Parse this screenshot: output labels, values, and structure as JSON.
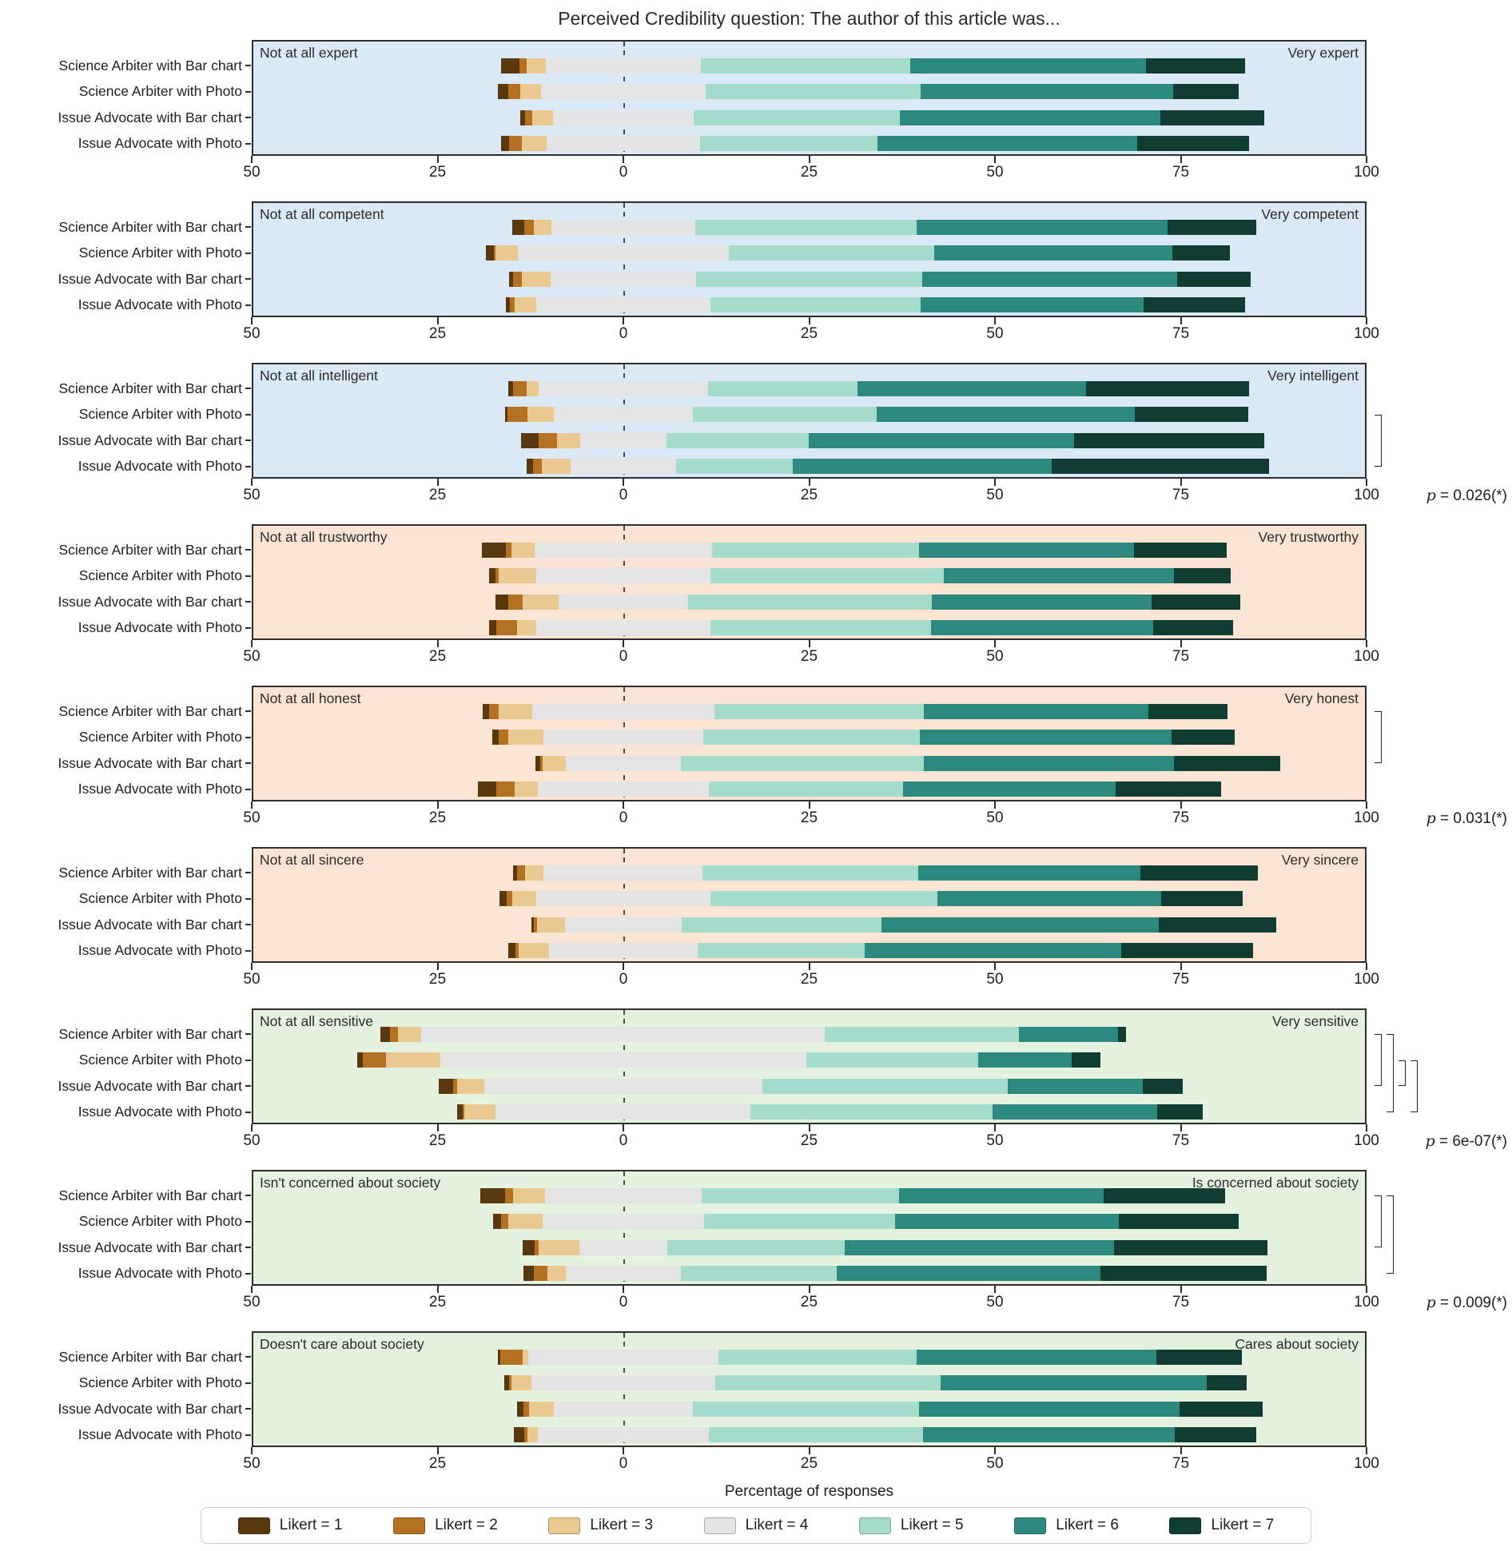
{
  "title": "Perceived Credibility question: The author of this article was...",
  "xlabel": "Percentage of responses",
  "legend": {
    "items": [
      {
        "label": "Likert = 1",
        "color": "#5a380e"
      },
      {
        "label": "Likert = 2",
        "color": "#b47122"
      },
      {
        "label": "Likert = 3",
        "color": "#e9c98f"
      },
      {
        "label": "Likert = 4",
        "color": "#e4e4e4"
      },
      {
        "label": "Likert = 5",
        "color": "#a4dbca"
      },
      {
        "label": "Likert = 6",
        "color": "#2b8a7d"
      },
      {
        "label": "Likert = 7",
        "color": "#103c31"
      }
    ]
  },
  "chart_data": {
    "type": "diverging_stacked_bar",
    "title": "Perceived Credibility question: The author of this article was...",
    "xlabel": "Percentage of responses",
    "x_ticks": [
      -50,
      -25,
      0,
      25,
      50,
      75,
      100
    ],
    "x_tick_labels": [
      "50",
      "25",
      "0",
      "25",
      "50",
      "75",
      "100"
    ],
    "xlim": [
      -50,
      100
    ],
    "categories": [
      "Science Arbiter with Bar chart",
      "Science Arbiter with Photo",
      "Issue Advocate with Bar chart",
      "Issue Advocate with Photo"
    ],
    "likert_levels": [
      "Likert = 1",
      "Likert = 2",
      "Likert = 3",
      "Likert = 4",
      "Likert = 5",
      "Likert = 6",
      "Likert = 7"
    ],
    "colors": [
      "#5a380e",
      "#b47122",
      "#e9c98f",
      "#e4e4e4",
      "#a4dbca",
      "#2b8a7d",
      "#103c31"
    ],
    "note": "Each row lists percentage of responses for Likert 1..7; Likert 4 (neutral) is centered on 0.",
    "panels": [
      {
        "neg_label": "Not at all expert",
        "pos_label": "Very expert",
        "bg": "#dbe9f6",
        "p_label": null,
        "brackets": [],
        "rows": [
          [
            2.5,
            1.0,
            2.6,
            20.8,
            28.2,
            31.7,
            13.4
          ],
          [
            1.4,
            1.6,
            2.8,
            22.2,
            28.9,
            34.0,
            8.8
          ],
          [
            0.6,
            1.0,
            2.8,
            18.9,
            27.8,
            35.0,
            14.0
          ],
          [
            1.1,
            1.7,
            3.3,
            20.7,
            23.8,
            35.0,
            15.0
          ]
        ]
      },
      {
        "neg_label": "Not at all competent",
        "pos_label": "Very competent",
        "bg": "#dbe9f6",
        "p_label": null,
        "brackets": [],
        "rows": [
          [
            1.7,
            1.3,
            2.3,
            19.4,
            29.8,
            33.7,
            12.0
          ],
          [
            1.0,
            0.3,
            3.0,
            28.3,
            27.7,
            32.0,
            7.8
          ],
          [
            0.6,
            1.1,
            3.9,
            19.6,
            30.4,
            34.3,
            9.9
          ],
          [
            0.6,
            0.6,
            2.9,
            23.5,
            28.3,
            30.0,
            13.6
          ]
        ]
      },
      {
        "neg_label": "Not at all intelligent",
        "pos_label": "Very intelligent",
        "bg": "#dbe9f6",
        "p_label": "p = 0.026(*)",
        "brackets": [
          [
            2,
            4
          ]
        ],
        "rows": [
          [
            0.7,
            1.8,
            1.6,
            22.8,
            20.1,
            30.8,
            21.9
          ],
          [
            0.4,
            2.7,
            3.5,
            18.7,
            24.7,
            34.8,
            15.2
          ],
          [
            2.4,
            2.5,
            3.1,
            11.6,
            19.1,
            35.8,
            25.5
          ],
          [
            0.8,
            1.2,
            3.9,
            14.2,
            15.7,
            34.8,
            29.3
          ]
        ]
      },
      {
        "neg_label": "Not at all trustworthy",
        "pos_label": "Very trustworthy",
        "bg": "#fbe4d4",
        "p_label": null,
        "brackets": [],
        "rows": [
          [
            3.2,
            0.8,
            3.1,
            23.9,
            27.8,
            29.0,
            12.4
          ],
          [
            0.9,
            0.4,
            5.0,
            23.5,
            31.4,
            30.9,
            7.7
          ],
          [
            1.8,
            1.9,
            4.8,
            17.5,
            32.8,
            29.5,
            12.0
          ],
          [
            1.0,
            2.8,
            2.6,
            23.4,
            29.7,
            29.9,
            10.7
          ]
        ]
      },
      {
        "neg_label": "Not at all honest",
        "pos_label": "Very honest",
        "bg": "#fbe4d4",
        "p_label": "p = 0.031(*)",
        "brackets": [
          [
            1,
            3
          ]
        ],
        "rows": [
          [
            0.9,
            1.3,
            4.5,
            24.5,
            28.2,
            30.2,
            10.6
          ],
          [
            0.9,
            1.3,
            4.7,
            21.5,
            29.2,
            33.8,
            8.5
          ],
          [
            0.6,
            0.3,
            3.2,
            15.4,
            32.7,
            33.7,
            14.3
          ],
          [
            2.5,
            2.4,
            3.1,
            23.1,
            26.1,
            28.6,
            14.2
          ]
        ]
      },
      {
        "neg_label": "Not at all sincere",
        "pos_label": "Very sincere",
        "bg": "#fbe4d4",
        "p_label": null,
        "brackets": [],
        "rows": [
          [
            0.5,
            1.1,
            2.5,
            21.4,
            29.0,
            29.9,
            15.8
          ],
          [
            1.0,
            0.7,
            3.2,
            23.5,
            30.5,
            30.1,
            11.0
          ],
          [
            0.4,
            0.4,
            3.7,
            15.8,
            26.8,
            37.3,
            15.9
          ],
          [
            1.0,
            0.4,
            4.1,
            20.0,
            22.5,
            34.5,
            17.7
          ]
        ]
      },
      {
        "neg_label": "Not at all sensitive",
        "pos_label": "Very sensitive",
        "bg": "#e4f2df",
        "p_label": "p = 6e-07(*)",
        "brackets": [
          [
            1,
            3
          ],
          [
            1,
            4
          ],
          [
            2,
            3
          ],
          [
            2,
            4
          ]
        ],
        "rows": [
          [
            1.2,
            1.1,
            3.2,
            54.3,
            26.1,
            13.3,
            1.1
          ],
          [
            0.8,
            3.1,
            7.3,
            49.3,
            23.1,
            12.6,
            3.9
          ],
          [
            2.0,
            0.5,
            3.6,
            37.5,
            33.0,
            18.1,
            5.4
          ],
          [
            0.7,
            0.3,
            4.2,
            34.3,
            32.5,
            22.2,
            6.1
          ]
        ]
      },
      {
        "neg_label": "Isn't concerned about society",
        "pos_label": "Is concerned about society",
        "bg": "#e4f2df",
        "p_label": "p = 0.009(*)",
        "brackets": [
          [
            1,
            3
          ],
          [
            1,
            4
          ]
        ],
        "rows": [
          [
            3.3,
            1.1,
            4.3,
            21.1,
            26.6,
            27.5,
            16.3
          ],
          [
            1.0,
            1.0,
            4.6,
            21.8,
            25.7,
            30.1,
            16.1
          ],
          [
            1.6,
            0.6,
            5.4,
            11.9,
            23.8,
            36.3,
            20.6
          ],
          [
            1.4,
            1.8,
            2.5,
            15.5,
            21.0,
            35.4,
            22.4
          ]
        ]
      },
      {
        "neg_label": "Doesn't care about society",
        "pos_label": "Cares about society",
        "bg": "#e4f2df",
        "p_label": null,
        "brackets": [],
        "rows": [
          [
            0.3,
            3.1,
            0.7,
            25.6,
            26.7,
            32.2,
            11.5
          ],
          [
            0.7,
            0.3,
            2.7,
            24.7,
            30.3,
            35.8,
            5.4
          ],
          [
            0.8,
            0.8,
            3.3,
            18.7,
            30.4,
            35.1,
            11.2
          ],
          [
            1.4,
            0.4,
            1.4,
            23.1,
            28.8,
            33.9,
            10.9
          ]
        ]
      }
    ]
  }
}
